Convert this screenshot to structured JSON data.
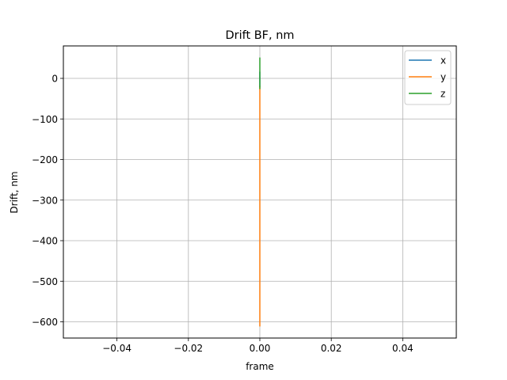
{
  "chart_data": {
    "type": "line",
    "title": "Drift BF, nm",
    "xlabel": "frame",
    "ylabel": "Drift, nm",
    "xlim": [
      -0.055,
      0.055
    ],
    "ylim": [
      -640,
      80
    ],
    "xticks": [
      -0.04,
      -0.02,
      0.0,
      0.02,
      0.04
    ],
    "xtick_labels": [
      "−0.04",
      "−0.02",
      "0.00",
      "0.02",
      "0.04"
    ],
    "yticks": [
      0,
      -100,
      -200,
      -300,
      -400,
      -500,
      -600
    ],
    "ytick_labels": [
      "0",
      "−100",
      "−200",
      "−300",
      "−400",
      "−500",
      "−600"
    ],
    "grid": true,
    "legend_position": "top-right",
    "series": [
      {
        "name": "x",
        "color": "#1f77b4",
        "x": [
          0,
          0
        ],
        "y": [
          -20,
          15
        ]
      },
      {
        "name": "y",
        "color": "#ff7f0e",
        "x": [
          0,
          0
        ],
        "y": [
          -610,
          -20
        ]
      },
      {
        "name": "z",
        "color": "#2ca02c",
        "x": [
          0,
          0
        ],
        "y": [
          -25,
          50
        ]
      }
    ]
  }
}
